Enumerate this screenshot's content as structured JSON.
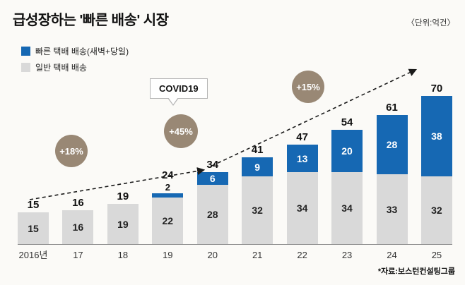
{
  "header": {
    "title": "급성장하는 '빠른 배송' 시장",
    "unit": "〈단위:억건〉"
  },
  "legend": [
    {
      "label": "빠른 택배 배송(새벽+당일)",
      "color": "#1668b3"
    },
    {
      "label": "일반 택배 배송",
      "color": "#d9d9d9"
    }
  ],
  "footer": {
    "source": "*자료:보스턴컨설팅그룹"
  },
  "chart_data": {
    "type": "bar",
    "stacked": true,
    "title": "급성장하는 '빠른 배송' 시장",
    "unit_label": "억건",
    "categories": [
      "2016년",
      "17",
      "18",
      "19",
      "20",
      "21",
      "22",
      "23",
      "24",
      "25"
    ],
    "series": [
      {
        "name": "빠른 택배 배송(새벽+당일)",
        "color": "#1668b3",
        "values": [
          0,
          0,
          0,
          2,
          6,
          9,
          13,
          20,
          28,
          38
        ]
      },
      {
        "name": "일반 택배 배송",
        "color": "#d9d9d9",
        "values": [
          15,
          16,
          19,
          22,
          28,
          32,
          34,
          34,
          33,
          32
        ]
      }
    ],
    "totals": [
      15,
      16,
      19,
      24,
      34,
      41,
      47,
      54,
      61,
      70
    ],
    "ylim": [
      0,
      75
    ],
    "legend_position": "top-left",
    "grid": false,
    "annotations": [
      {
        "label": "+18%",
        "type": "growth-circle"
      },
      {
        "label": "+45%",
        "type": "growth-circle"
      },
      {
        "label": "+15%",
        "type": "growth-circle"
      },
      {
        "label": "COVID19",
        "type": "callout"
      }
    ],
    "trend_arrow": "dashed ascending arrow across bar tops"
  }
}
